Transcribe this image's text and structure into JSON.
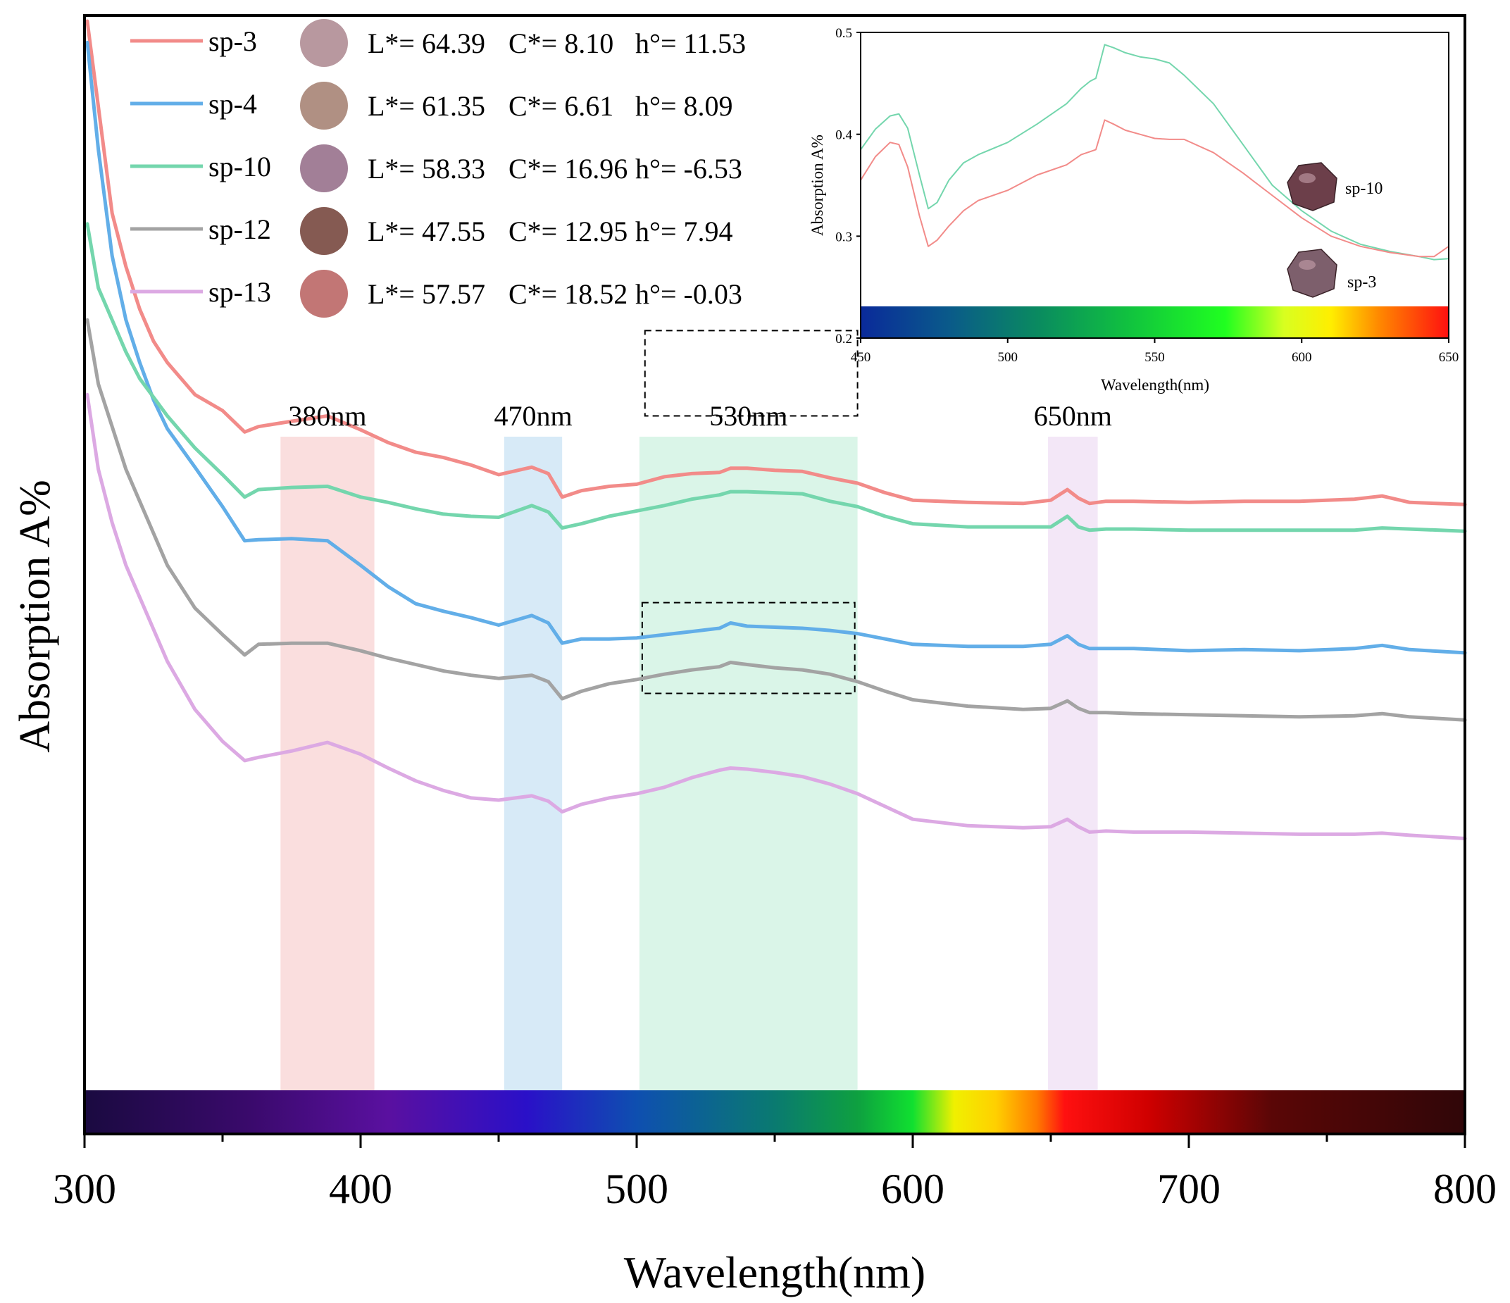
{
  "colors": {
    "sp3": "#f28b89",
    "sp4": "#62aee8",
    "sp10": "#74d6ad",
    "sp12": "#a3a3a3",
    "sp13": "#dca9e3",
    "band380": "#fadada",
    "band470": "#d3e8f6",
    "band530": "#d6f4e6",
    "band650": "#f2e4f6"
  },
  "chart_data": {
    "type": "line",
    "title": "",
    "xlabel": "Wavelength(nm)",
    "ylabel": "Absorption A%",
    "xlim": [
      300,
      800
    ],
    "ylim": [
      0,
      100
    ],
    "y_ticks_shown": false,
    "x_ticks": [
      300,
      400,
      500,
      600,
      700,
      800
    ],
    "x_tick_labels": [
      "300",
      "400",
      "500",
      "600",
      "700",
      "800"
    ],
    "legend": [
      {
        "key": "sp3",
        "label": "sp-3",
        "swatch": "#b8989f",
        "L": "L*= 64.39",
        "C": "C*= 8.10",
        "h": "h°= 11.53"
      },
      {
        "key": "sp4",
        "label": "sp-4",
        "swatch": "#b09083",
        "L": "L*= 61.35",
        "C": "C*= 6.61",
        "h": "h°= 8.09"
      },
      {
        "key": "sp10",
        "label": "sp-10",
        "swatch": "#a27f97",
        "L": "L*= 58.33",
        "C": "C*= 16.96",
        "h": "h°= -6.53"
      },
      {
        "key": "sp12",
        "label": "sp-12",
        "swatch": "#855a52",
        "L": "L*= 47.55",
        "C": "C*= 12.95",
        "h": "h°= 7.94"
      },
      {
        "key": "sp13",
        "label": "sp-13",
        "swatch": "#c27675",
        "L": "L*= 57.57",
        "C": "C*= 18.52",
        "h": "h°=  -0.03"
      }
    ],
    "bands": [
      {
        "label": "380nm",
        "range": [
          371,
          405
        ],
        "color": "#fadada"
      },
      {
        "label": "470nm",
        "range": [
          452,
          473
        ],
        "color": "#d3e8f6"
      },
      {
        "label": "530nm",
        "range": [
          501,
          580
        ],
        "color": "#d6f4e6"
      },
      {
        "label": "650nm",
        "range": [
          649,
          667
        ],
        "color": "#f2e4f6"
      }
    ],
    "zoom_boxes": [
      {
        "series": "sp3",
        "x_range": [
          503,
          580
        ],
        "y_range": [
          63,
          71
        ]
      },
      {
        "series": "sp10",
        "x_range": [
          502,
          579
        ],
        "y_range": [
          37,
          45.5
        ]
      }
    ],
    "series": [
      {
        "name": "sp-3",
        "key": "sp3",
        "x": [
          301,
          305,
          310,
          315,
          320,
          325,
          330,
          340,
          350,
          358,
          363,
          375,
          388,
          400,
          410,
          420,
          430,
          440,
          450,
          462,
          468,
          473,
          480,
          490,
          500,
          510,
          520,
          530,
          534,
          540,
          550,
          560,
          570,
          580,
          590,
          600,
          620,
          640,
          650,
          656,
          660,
          664,
          670,
          680,
          700,
          720,
          740,
          760,
          770,
          780,
          800
        ],
        "y": [
          100,
          92,
          82,
          77,
          73,
          70,
          68,
          65,
          63.5,
          61.5,
          62,
          62.5,
          63,
          61.7,
          60.5,
          59.6,
          59.1,
          58.4,
          57.5,
          58.2,
          57.6,
          55.4,
          56,
          56.4,
          56.6,
          57.3,
          57.6,
          57.7,
          58.1,
          58.1,
          57.9,
          57.8,
          57.2,
          56.7,
          55.8,
          55.1,
          54.9,
          54.8,
          55.1,
          56.1,
          55.3,
          54.8,
          55,
          55,
          54.9,
          55,
          55,
          55.2,
          55.5,
          54.9,
          54.7
        ]
      },
      {
        "name": "sp-4",
        "key": "sp4",
        "x": [
          301,
          305,
          310,
          315,
          320,
          325,
          330,
          340,
          350,
          358,
          363,
          375,
          388,
          400,
          410,
          420,
          430,
          440,
          450,
          462,
          468,
          473,
          480,
          490,
          500,
          510,
          520,
          530,
          534,
          540,
          550,
          560,
          570,
          580,
          590,
          600,
          620,
          640,
          650,
          656,
          660,
          664,
          670,
          680,
          700,
          720,
          740,
          760,
          770,
          780,
          800
        ],
        "y": [
          98,
          88,
          78,
          72,
          68,
          64.5,
          61.8,
          58.2,
          54.5,
          51.3,
          51.4,
          51.5,
          51.3,
          49,
          47,
          45.4,
          44.7,
          44.1,
          43.4,
          44.3,
          43.6,
          41.7,
          42.1,
          42.1,
          42.2,
          42.5,
          42.8,
          43.1,
          43.6,
          43.3,
          43.2,
          43.1,
          42.9,
          42.6,
          42.1,
          41.6,
          41.4,
          41.4,
          41.6,
          42.4,
          41.6,
          41.2,
          41.2,
          41.2,
          41,
          41.1,
          41,
          41.2,
          41.5,
          41.1,
          40.8
        ]
      },
      {
        "name": "sp-10",
        "key": "sp10",
        "x": [
          301,
          305,
          310,
          315,
          320,
          330,
          340,
          350,
          358,
          363,
          375,
          388,
          400,
          410,
          420,
          430,
          440,
          450,
          462,
          468,
          473,
          480,
          490,
          500,
          510,
          520,
          530,
          534,
          540,
          550,
          560,
          570,
          580,
          590,
          600,
          620,
          640,
          650,
          656,
          660,
          664,
          670,
          680,
          700,
          720,
          740,
          760,
          770,
          780,
          800
        ],
        "y": [
          81,
          75,
          72,
          69,
          66.5,
          63,
          60,
          57.5,
          55.4,
          56.1,
          56.3,
          56.4,
          55.4,
          54.9,
          54.3,
          53.8,
          53.6,
          53.5,
          54.6,
          54,
          52.5,
          52.9,
          53.6,
          54.1,
          54.6,
          55.2,
          55.6,
          55.9,
          55.9,
          55.8,
          55.7,
          55,
          54.5,
          53.6,
          52.9,
          52.6,
          52.6,
          52.6,
          53.6,
          52.6,
          52.3,
          52.4,
          52.4,
          52.3,
          52.3,
          52.3,
          52.3,
          52.5,
          52.4,
          52.2
        ]
      },
      {
        "name": "sp-12",
        "key": "sp12",
        "x": [
          301,
          305,
          310,
          315,
          320,
          330,
          340,
          350,
          358,
          363,
          375,
          388,
          400,
          410,
          420,
          430,
          440,
          450,
          462,
          468,
          473,
          480,
          490,
          500,
          510,
          520,
          530,
          534,
          540,
          550,
          560,
          570,
          580,
          590,
          600,
          620,
          640,
          650,
          656,
          660,
          664,
          670,
          680,
          700,
          720,
          740,
          760,
          770,
          780,
          800
        ],
        "y": [
          72,
          66,
          62,
          58,
          55,
          49,
          45,
          42.5,
          40.6,
          41.6,
          41.7,
          41.7,
          41,
          40.3,
          39.7,
          39.1,
          38.7,
          38.4,
          38.7,
          38.1,
          36.5,
          37.2,
          37.9,
          38.3,
          38.8,
          39.2,
          39.5,
          39.9,
          39.7,
          39.4,
          39.2,
          38.8,
          38.1,
          37.2,
          36.4,
          35.8,
          35.5,
          35.6,
          36.3,
          35.6,
          35.2,
          35.2,
          35.1,
          35,
          34.9,
          34.8,
          34.9,
          35.1,
          34.8,
          34.5
        ]
      },
      {
        "name": "sp-13",
        "key": "sp13",
        "x": [
          301,
          305,
          310,
          315,
          320,
          330,
          340,
          350,
          358,
          363,
          375,
          388,
          400,
          410,
          420,
          430,
          440,
          450,
          462,
          468,
          473,
          480,
          490,
          500,
          510,
          520,
          530,
          534,
          540,
          550,
          560,
          570,
          580,
          590,
          600,
          620,
          640,
          650,
          656,
          660,
          664,
          670,
          680,
          700,
          720,
          740,
          760,
          770,
          780,
          800
        ],
        "y": [
          65,
          58,
          53,
          49,
          46,
          40,
          35.5,
          32.5,
          30.7,
          31,
          31.6,
          32.4,
          31.3,
          30,
          28.8,
          27.9,
          27.2,
          27,
          27.4,
          26.9,
          25.9,
          26.6,
          27.2,
          27.6,
          28.2,
          29.1,
          29.8,
          30,
          29.9,
          29.6,
          29.2,
          28.5,
          27.6,
          26.4,
          25.2,
          24.6,
          24.4,
          24.5,
          25.2,
          24.5,
          24,
          24.1,
          24,
          24,
          23.9,
          23.8,
          23.8,
          23.9,
          23.7,
          23.4
        ]
      }
    ],
    "inset": {
      "type": "line",
      "xlabel": "Wavelength(nm)",
      "ylabel": "Absorption A%",
      "xlim": [
        450,
        650
      ],
      "ylim": [
        0.2,
        0.5
      ],
      "x_ticks": [
        450,
        500,
        550,
        600,
        650
      ],
      "x_tick_labels": [
        "450",
        "500",
        "550",
        "600",
        "650"
      ],
      "y_ticks": [
        0.2,
        0.3,
        0.4,
        0.5
      ],
      "y_tick_labels": [
        "0.2",
        "0.3",
        "0.4",
        "0.5"
      ],
      "gem_labels": [
        {
          "label": "sp-10",
          "color": "#6c3f4a"
        },
        {
          "label": "sp-3",
          "color": "#7d5f6c"
        }
      ],
      "series": [
        {
          "name": "sp-10",
          "key": "sp10",
          "x": [
            450,
            455,
            460,
            463,
            466,
            470,
            473,
            476,
            480,
            485,
            490,
            500,
            510,
            520,
            525,
            528,
            530,
            533,
            536,
            540,
            545,
            550,
            555,
            560,
            570,
            580,
            590,
            600,
            610,
            620,
            630,
            640,
            645,
            650
          ],
          "y": [
            0.385,
            0.405,
            0.418,
            0.42,
            0.406,
            0.36,
            0.327,
            0.333,
            0.355,
            0.372,
            0.38,
            0.392,
            0.41,
            0.43,
            0.445,
            0.452,
            0.455,
            0.488,
            0.485,
            0.48,
            0.476,
            0.474,
            0.47,
            0.458,
            0.43,
            0.39,
            0.35,
            0.325,
            0.305,
            0.292,
            0.285,
            0.28,
            0.277,
            0.278
          ]
        },
        {
          "name": "sp-3",
          "key": "sp3",
          "x": [
            450,
            455,
            460,
            463,
            466,
            470,
            473,
            476,
            480,
            485,
            490,
            500,
            510,
            520,
            525,
            528,
            530,
            533,
            536,
            540,
            545,
            550,
            555,
            560,
            570,
            580,
            590,
            600,
            610,
            620,
            630,
            640,
            645,
            650
          ],
          "y": [
            0.355,
            0.378,
            0.392,
            0.39,
            0.368,
            0.32,
            0.29,
            0.296,
            0.31,
            0.325,
            0.335,
            0.345,
            0.36,
            0.37,
            0.38,
            0.383,
            0.385,
            0.414,
            0.41,
            0.404,
            0.4,
            0.396,
            0.395,
            0.395,
            0.382,
            0.362,
            0.34,
            0.318,
            0.3,
            0.29,
            0.284,
            0.28,
            0.28,
            0.29
          ]
        }
      ]
    }
  }
}
